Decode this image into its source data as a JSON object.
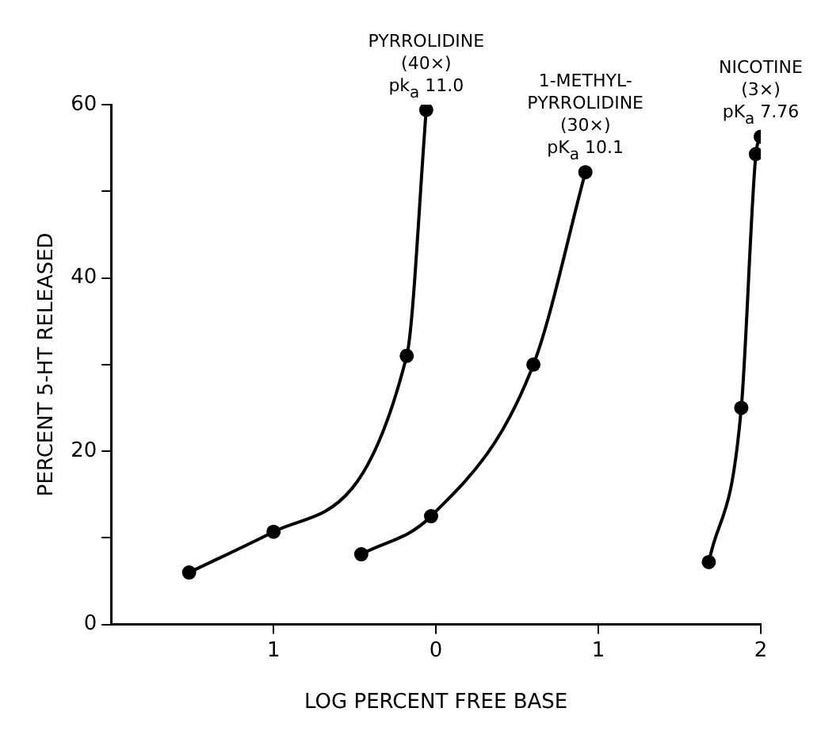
{
  "chart_data": {
    "type": "line",
    "xlabel": "LOG PERCENT FREE BASE",
    "ylabel": "PERCENT 5-HT RELEASED",
    "xlim": [
      -2,
      2
    ],
    "xticks": [
      {
        "value": -1,
        "label": "1"
      },
      0,
      1,
      2
    ],
    "ylim": [
      0,
      60
    ],
    "yticks": [
      0,
      {
        "value": 10,
        "label": null
      },
      20,
      {
        "value": 30,
        "label": null
      },
      40,
      {
        "value": 50,
        "label": null
      },
      60
    ],
    "grid": false,
    "legend": false,
    "marker": "circle",
    "line_style": "solid",
    "series": [
      {
        "name": "PYRROLIDINE\n(40×)\npk$_{a}$ 11.0",
        "color": "#000000",
        "x": [
          -1.52,
          -1.0,
          -0.18,
          -0.06
        ],
        "values": [
          6.0,
          10.7,
          31,
          59.4
        ]
      },
      {
        "name": "1-METHYL-\nPYRROLIDINE\n(30×)\npK$_{a}$ 10.1",
        "color": "#000000",
        "x": [
          -0.46,
          -0.03,
          0.6,
          0.92
        ],
        "values": [
          8.1,
          12.5,
          30,
          52.2
        ]
      },
      {
        "name": "NICOTINE\n(3×)\npK$_{a}$ 7.76",
        "color": "#000000",
        "x": [
          1.68,
          1.88,
          1.97,
          2.0
        ],
        "values": [
          7.2,
          25,
          54.3,
          56.3
        ]
      }
    ]
  }
}
